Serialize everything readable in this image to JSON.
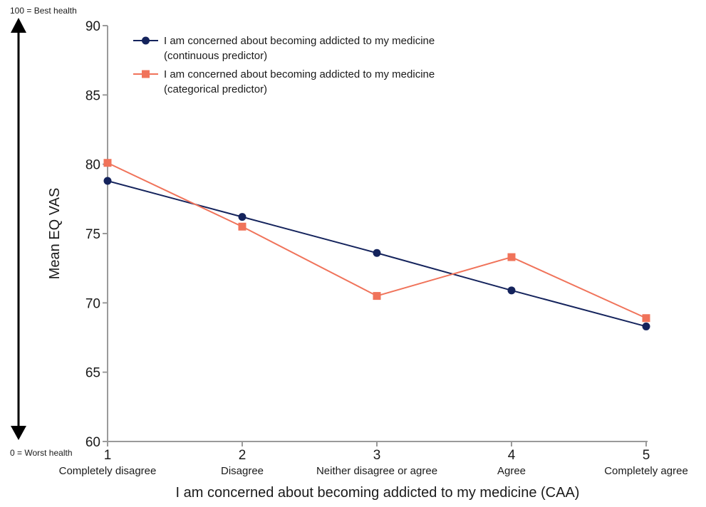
{
  "chart_data": {
    "type": "line",
    "x": [
      1,
      2,
      3,
      4,
      5
    ],
    "x_tick_labels": [
      "1",
      "2",
      "3",
      "4",
      "5"
    ],
    "categories": [
      "Completely disagree",
      "Disagree",
      "Neither disagree or agree",
      "Agree",
      "Completely agree"
    ],
    "series": [
      {
        "name": "I am concerned about becoming addicted to my medicine (continuous predictor)",
        "legend_lines": [
          "I am concerned about becoming addicted to my medicine",
          "(continuous predictor)"
        ],
        "color": "#14235c",
        "marker": "circle",
        "values": [
          78.8,
          76.2,
          73.6,
          70.9,
          68.3
        ]
      },
      {
        "name": "I am concerned about becoming addicted to my medicine (categorical predictor)",
        "legend_lines": [
          "I am concerned about becoming addicted to my medicine",
          "(categorical predictor)"
        ],
        "color": "#f0735a",
        "marker": "square",
        "values": [
          80.1,
          75.5,
          70.5,
          73.3,
          68.9
        ]
      }
    ],
    "xlabel": "I am concerned about becoming addicted to my medicine (CAA)",
    "ylabel": "Mean EQ VAS",
    "ylim": [
      60,
      90
    ],
    "yticks": [
      60,
      65,
      70,
      75,
      80,
      85,
      90
    ],
    "grid": false,
    "legend_position": "top-left",
    "side_annotations": {
      "top": "100 = Best health",
      "bottom": "0 = Worst health"
    }
  }
}
